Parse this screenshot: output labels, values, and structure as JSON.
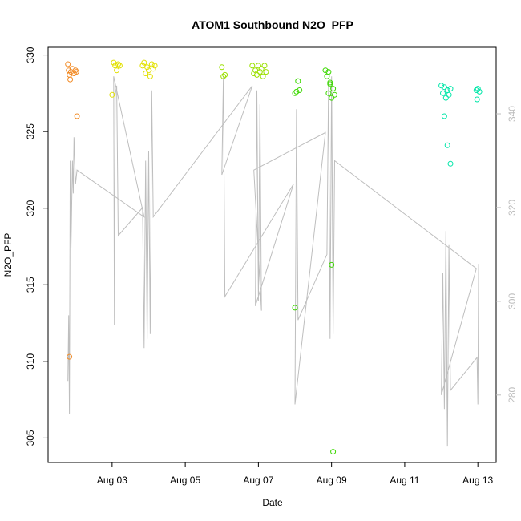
{
  "chart_data": {
    "type": "scatter",
    "title": "ATOM1 Southbound N2O_PFP",
    "xlabel": "Date",
    "ylabel": "N2O_PFP",
    "x_axis": {
      "type": "date",
      "range": [
        "2016-08-01T06:00",
        "2016-08-13T12:00"
      ],
      "ticks": [
        {
          "value": "2016-08-03",
          "label": "Aug 03"
        },
        {
          "value": "2016-08-05",
          "label": "Aug 05"
        },
        {
          "value": "2016-08-07",
          "label": "Aug 07"
        },
        {
          "value": "2016-08-09",
          "label": "Aug 09"
        },
        {
          "value": "2016-08-11",
          "label": "Aug 11"
        },
        {
          "value": "2016-08-13",
          "label": "Aug 13"
        }
      ]
    },
    "y_axis": {
      "range": [
        303.4,
        330.5
      ],
      "ticks": [
        305,
        310,
        315,
        320,
        325,
        330
      ]
    },
    "y2_axis": {
      "range": [
        265.6,
        354.2
      ],
      "ticks": [
        280,
        300,
        320,
        340
      ],
      "color": "#bebebe"
    },
    "grid": false,
    "legend": "none",
    "series": [
      {
        "kind": "points",
        "color": "#F28C28",
        "points": [
          [
            "2016-08-01T19:00",
            329.4
          ],
          [
            "2016-08-01T19:30",
            329.0
          ],
          [
            "2016-08-01T20:00",
            328.7
          ],
          [
            "2016-08-01T20:30",
            328.4
          ],
          [
            "2016-08-01T21:00",
            328.9
          ],
          [
            "2016-08-01T22:00",
            329.1
          ],
          [
            "2016-08-01T23:00",
            328.8
          ],
          [
            "2016-08-02T00:00",
            329.0
          ],
          [
            "2016-08-02T00:30",
            328.9
          ],
          [
            "2016-08-02T01:00",
            326.0
          ],
          [
            "2016-08-01T20:00",
            310.3
          ]
        ]
      },
      {
        "kind": "points",
        "color": "#E2E000",
        "points": [
          [
            "2016-08-03T00:00",
            327.4
          ],
          [
            "2016-08-03T01:00",
            329.5
          ],
          [
            "2016-08-03T02:00",
            329.3
          ],
          [
            "2016-08-03T03:00",
            329.0
          ],
          [
            "2016-08-03T04:00",
            329.4
          ],
          [
            "2016-08-03T05:00",
            329.3
          ],
          [
            "2016-08-03T20:00",
            329.3
          ],
          [
            "2016-08-03T21:00",
            329.5
          ],
          [
            "2016-08-03T22:00",
            328.8
          ],
          [
            "2016-08-03T23:00",
            329.2
          ],
          [
            "2016-08-04T00:00",
            329.0
          ],
          [
            "2016-08-04T01:00",
            328.6
          ],
          [
            "2016-08-04T02:00",
            329.4
          ],
          [
            "2016-08-04T03:00",
            329.1
          ],
          [
            "2016-08-04T04:00",
            329.3
          ]
        ]
      },
      {
        "kind": "points",
        "color": "#9BE000",
        "points": [
          [
            "2016-08-06T00:00",
            329.2
          ],
          [
            "2016-08-06T01:00",
            328.6
          ],
          [
            "2016-08-06T02:00",
            328.7
          ],
          [
            "2016-08-06T20:00",
            329.3
          ],
          [
            "2016-08-06T21:00",
            328.8
          ],
          [
            "2016-08-06T22:00",
            329.0
          ],
          [
            "2016-08-06T23:00",
            328.7
          ],
          [
            "2016-08-07T00:00",
            329.3
          ],
          [
            "2016-08-07T01:00",
            328.9
          ],
          [
            "2016-08-07T02:00",
            329.1
          ],
          [
            "2016-08-07T03:00",
            328.6
          ],
          [
            "2016-08-07T04:00",
            329.3
          ],
          [
            "2016-08-07T05:00",
            328.9
          ]
        ]
      },
      {
        "kind": "points",
        "color": "#3CD800",
        "points": [
          [
            "2016-08-08T00:00",
            327.5
          ],
          [
            "2016-08-08T01:00",
            327.6
          ],
          [
            "2016-08-08T02:00",
            328.3
          ],
          [
            "2016-08-08T03:00",
            327.7
          ],
          [
            "2016-08-08T00:00",
            313.5
          ],
          [
            "2016-08-08T20:00",
            329.0
          ],
          [
            "2016-08-08T21:00",
            328.6
          ],
          [
            "2016-08-08T22:00",
            328.9
          ],
          [
            "2016-08-08T23:00",
            328.1
          ],
          [
            "2016-08-08T22:00",
            327.5
          ],
          [
            "2016-08-09T00:00",
            327.2
          ],
          [
            "2016-08-09T01:00",
            327.8
          ],
          [
            "2016-08-09T02:00",
            327.4
          ],
          [
            "2016-08-08T23:00",
            328.2
          ],
          [
            "2016-08-09T00:00",
            316.3
          ],
          [
            "2016-08-09T01:00",
            304.1
          ]
        ]
      },
      {
        "kind": "points",
        "color": "#00E6A8",
        "points": [
          [
            "2016-08-12T00:00",
            328.0
          ],
          [
            "2016-08-12T01:00",
            327.5
          ],
          [
            "2016-08-12T02:00",
            327.9
          ],
          [
            "2016-08-12T03:00",
            327.2
          ],
          [
            "2016-08-12T04:00",
            327.7
          ],
          [
            "2016-08-12T05:00",
            327.4
          ],
          [
            "2016-08-12T06:00",
            327.8
          ],
          [
            "2016-08-12T02:00",
            326.0
          ],
          [
            "2016-08-12T04:00",
            324.1
          ],
          [
            "2016-08-12T06:00",
            322.9
          ],
          [
            "2016-08-12T23:00",
            327.7
          ],
          [
            "2016-08-13T00:00",
            327.8
          ],
          [
            "2016-08-13T01:00",
            327.6
          ],
          [
            "2016-08-12T23:30",
            327.1
          ]
        ]
      },
      {
        "kind": "line",
        "color": "#bebebe",
        "axis": "y2",
        "points": [
          [
            "2016-08-01T19:00",
            283.0
          ],
          [
            "2016-08-01T19:30",
            297.0
          ],
          [
            "2016-08-01T20:00",
            276.0
          ],
          [
            "2016-08-01T20:30",
            330.0
          ],
          [
            "2016-08-01T21:00",
            311.0
          ],
          [
            "2016-08-01T22:00",
            330.0
          ],
          [
            "2016-08-01T22:30",
            323.0
          ],
          [
            "2016-08-01T23:00",
            335.0
          ],
          [
            "2016-08-02T00:00",
            325.0
          ],
          [
            "2016-08-02T01:00",
            328.0
          ],
          [
            "2016-08-03T21:00",
            318.0
          ],
          [
            "2016-08-03T01:00",
            348.0
          ],
          [
            "2016-08-03T01:30",
            295.0
          ],
          [
            "2016-08-03T02:00",
            344.0
          ],
          [
            "2016-08-03T03:00",
            346.0
          ],
          [
            "2016-08-03T04:00",
            314.0
          ],
          [
            "2016-08-03T20:00",
            320.0
          ],
          [
            "2016-08-03T21:00",
            290.0
          ],
          [
            "2016-08-03T22:00",
            330.0
          ],
          [
            "2016-08-03T23:00",
            292.0
          ],
          [
            "2016-08-04T00:00",
            332.0
          ],
          [
            "2016-08-04T01:00",
            293.0
          ],
          [
            "2016-08-04T02:00",
            345.0
          ],
          [
            "2016-08-04T03:00",
            318.0
          ],
          [
            "2016-08-06T20:00",
            346.0
          ],
          [
            "2016-08-06T00:00",
            327.0
          ],
          [
            "2016-08-06T01:00",
            348.0
          ],
          [
            "2016-08-06T02:00",
            301.0
          ],
          [
            "2016-08-07T23:00",
            325.0
          ],
          [
            "2016-08-06T22:00",
            299.0
          ],
          [
            "2016-08-06T23:00",
            345.0
          ],
          [
            "2016-08-07T00:00",
            300.0
          ],
          [
            "2016-08-07T01:00",
            342.0
          ],
          [
            "2016-08-07T02:00",
            298.0
          ],
          [
            "2016-08-06T21:00",
            328.0
          ],
          [
            "2016-08-08T20:00",
            336.0
          ],
          [
            "2016-08-08T00:00",
            278.0
          ],
          [
            "2016-08-08T01:00",
            341.0
          ],
          [
            "2016-08-08T02:00",
            296.0
          ],
          [
            "2016-08-08T21:00",
            310.0
          ],
          [
            "2016-08-08T22:00",
            347.0
          ],
          [
            "2016-08-08T23:00",
            292.0
          ],
          [
            "2016-08-09T00:00",
            348.0
          ],
          [
            "2016-08-09T01:00",
            293.0
          ],
          [
            "2016-08-09T02:00",
            330.0
          ],
          [
            "2016-08-12T23:00",
            307.0
          ],
          [
            "2016-08-12T00:00",
            280.0
          ],
          [
            "2016-08-12T01:00",
            306.0
          ],
          [
            "2016-08-12T02:00",
            277.0
          ],
          [
            "2016-08-12T03:00",
            315.0
          ],
          [
            "2016-08-12T04:00",
            269.0
          ],
          [
            "2016-08-12T05:00",
            312.0
          ],
          [
            "2016-08-12T06:00",
            281.0
          ],
          [
            "2016-08-12T23:30",
            288.0
          ],
          [
            "2016-08-13T00:00",
            278.0
          ],
          [
            "2016-08-13T00:30",
            308.0
          ]
        ]
      }
    ]
  }
}
